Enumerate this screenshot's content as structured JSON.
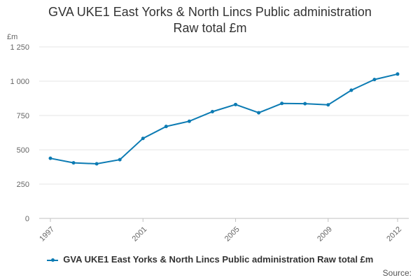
{
  "chart_data": {
    "type": "line",
    "title_line1": "GVA UKE1 East Yorks & North Lincs Public administration",
    "title_line2": "Raw total £m",
    "ylabel": "£m",
    "xlabel": "",
    "ylim": [
      0,
      1250
    ],
    "yticks": [
      0,
      250,
      500,
      750,
      1000,
      1250
    ],
    "ytick_labels": [
      "0",
      "250",
      "500",
      "750",
      "1 000",
      "1 250"
    ],
    "xlim": [
      1997,
      2012
    ],
    "xticks": [
      1997,
      2001,
      2005,
      2009,
      2012
    ],
    "xtick_labels": [
      "1997",
      "2001",
      "2005",
      "2009",
      "2012"
    ],
    "grid": true,
    "legend_position": "bottom",
    "series": [
      {
        "name": "GVA UKE1 East Yorks & North Lincs Public administration Raw total £m",
        "color": "#0c7bb3",
        "x": [
          1997,
          1998,
          1999,
          2000,
          2001,
          2002,
          2003,
          2004,
          2005,
          2006,
          2007,
          2008,
          2009,
          2010,
          2011,
          2012
        ],
        "values": [
          438,
          405,
          398,
          428,
          583,
          670,
          708,
          778,
          830,
          770,
          838,
          836,
          828,
          934,
          1012,
          1052
        ]
      }
    ]
  },
  "source_label": "Source:"
}
